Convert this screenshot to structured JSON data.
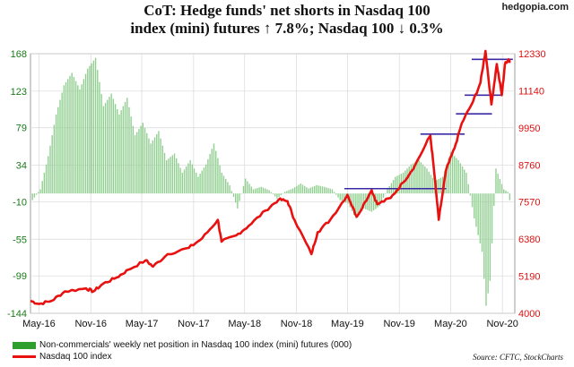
{
  "header": {
    "title_line1": "CoT: Hedge funds' net shorts in Nasdaq 100",
    "title_line2": "index (mini) futures ↑ 7.8%; Nasdaq 100 ↓ 0.3%",
    "watermark": "hedgopia.com"
  },
  "legend": {
    "bars_label": "Non-commercials' weekly net position in Nasdaq 100 index (mini) futures (000)",
    "line_label": "Nasdaq 100 index"
  },
  "source": "Source: CFTC, StockCharts",
  "colors": {
    "bars": "#8fce8f",
    "line": "#e8110f",
    "resistance": "#3b2aa6",
    "grid": "#d8d8d8"
  },
  "chart_data": {
    "type": "bar+line",
    "x_range": [
      "2016-04-01",
      "2020-12-15"
    ],
    "x_tick_labels": [
      {
        "label": "May-16",
        "date": "2016-05-01"
      },
      {
        "label": "Nov-16",
        "date": "2016-11-01"
      },
      {
        "label": "May-17",
        "date": "2017-05-01"
      },
      {
        "label": "Nov-17",
        "date": "2017-11-01"
      },
      {
        "label": "May-18",
        "date": "2018-05-01"
      },
      {
        "label": "Nov-18",
        "date": "2018-11-01"
      },
      {
        "label": "May-19",
        "date": "2019-05-01"
      },
      {
        "label": "Nov-19",
        "date": "2019-11-01"
      },
      {
        "label": "May-20",
        "date": "2020-05-01"
      },
      {
        "label": "Nov-20",
        "date": "2020-11-01"
      }
    ],
    "left_axis": {
      "range": [
        -144,
        168
      ],
      "ticks": [
        168,
        123,
        79,
        34,
        -10,
        -55,
        -99,
        -144
      ]
    },
    "right_axis": {
      "range": [
        4000,
        12330
      ],
      "ticks": [
        12330,
        11140,
        9950,
        8760,
        7570,
        6380,
        5190,
        4000
      ]
    },
    "grid": true,
    "legend_position": "bottom-left",
    "series": [
      {
        "name": "Non-commercials' weekly net position in Nasdaq 100 index (mini) futures (000)",
        "kind": "bar",
        "axis": "left",
        "points": [
          [
            "2016-04-08",
            -8
          ],
          [
            "2016-05-06",
            5
          ],
          [
            "2016-06-03",
            45
          ],
          [
            "2016-07-01",
            95
          ],
          [
            "2016-07-29",
            130
          ],
          [
            "2016-08-26",
            145
          ],
          [
            "2016-09-23",
            125
          ],
          [
            "2016-10-21",
            150
          ],
          [
            "2016-11-18",
            163
          ],
          [
            "2016-12-16",
            105
          ],
          [
            "2017-01-13",
            120
          ],
          [
            "2017-02-10",
            95
          ],
          [
            "2017-03-10",
            115
          ],
          [
            "2017-04-07",
            70
          ],
          [
            "2017-05-05",
            85
          ],
          [
            "2017-06-02",
            60
          ],
          [
            "2017-06-30",
            75
          ],
          [
            "2017-07-28",
            40
          ],
          [
            "2017-08-25",
            48
          ],
          [
            "2017-09-22",
            25
          ],
          [
            "2017-10-20",
            40
          ],
          [
            "2017-11-17",
            20
          ],
          [
            "2017-12-15",
            35
          ],
          [
            "2018-01-12",
            60
          ],
          [
            "2018-02-09",
            25
          ],
          [
            "2018-03-09",
            10
          ],
          [
            "2018-04-06",
            -18
          ],
          [
            "2018-05-04",
            18
          ],
          [
            "2018-06-01",
            5
          ],
          [
            "2018-06-29",
            8
          ],
          [
            "2018-07-27",
            4
          ],
          [
            "2018-08-24",
            -6
          ],
          [
            "2018-09-21",
            2
          ],
          [
            "2018-10-19",
            6
          ],
          [
            "2018-11-16",
            12
          ],
          [
            "2018-12-14",
            6
          ],
          [
            "2019-01-11",
            10
          ],
          [
            "2019-02-08",
            8
          ],
          [
            "2019-03-08",
            5
          ],
          [
            "2019-04-05",
            -8
          ],
          [
            "2019-05-03",
            -12
          ],
          [
            "2019-05-31",
            -30
          ],
          [
            "2019-06-28",
            -18
          ],
          [
            "2019-07-26",
            -22
          ],
          [
            "2019-08-23",
            -15
          ],
          [
            "2019-09-20",
            5
          ],
          [
            "2019-10-18",
            20
          ],
          [
            "2019-11-15",
            25
          ],
          [
            "2019-12-13",
            35
          ],
          [
            "2020-01-10",
            40
          ],
          [
            "2020-02-07",
            30
          ],
          [
            "2020-03-06",
            15
          ],
          [
            "2020-04-03",
            20
          ],
          [
            "2020-05-01",
            50
          ],
          [
            "2020-05-29",
            40
          ],
          [
            "2020-06-26",
            25
          ],
          [
            "2020-07-24",
            -30
          ],
          [
            "2020-08-21",
            -70
          ],
          [
            "2020-09-04",
            -135
          ],
          [
            "2020-09-18",
            -105
          ],
          [
            "2020-10-09",
            30
          ],
          [
            "2020-11-06",
            5
          ],
          [
            "2020-11-20",
            2
          ],
          [
            "2020-11-27",
            -8
          ]
        ]
      },
      {
        "name": "Nasdaq 100 index",
        "kind": "line",
        "axis": "right",
        "points": [
          [
            "2016-04-01",
            4400
          ],
          [
            "2016-05-01",
            4300
          ],
          [
            "2016-06-15",
            4400
          ],
          [
            "2016-08-01",
            4700
          ],
          [
            "2016-10-15",
            4800
          ],
          [
            "2016-11-10",
            4700
          ],
          [
            "2016-12-15",
            4950
          ],
          [
            "2017-02-01",
            5150
          ],
          [
            "2017-03-15",
            5400
          ],
          [
            "2017-05-15",
            5700
          ],
          [
            "2017-06-10",
            5500
          ],
          [
            "2017-08-01",
            5900
          ],
          [
            "2017-10-15",
            6100
          ],
          [
            "2017-12-01",
            6400
          ],
          [
            "2018-01-26",
            7000
          ],
          [
            "2018-02-08",
            6300
          ],
          [
            "2018-04-01",
            6500
          ],
          [
            "2018-05-15",
            6800
          ],
          [
            "2018-07-15",
            7300
          ],
          [
            "2018-08-30",
            7650
          ],
          [
            "2018-09-30",
            7600
          ],
          [
            "2018-10-25",
            7000
          ],
          [
            "2018-12-24",
            5900
          ],
          [
            "2019-01-15",
            6600
          ],
          [
            "2019-03-01",
            7000
          ],
          [
            "2019-05-01",
            7800
          ],
          [
            "2019-06-03",
            7100
          ],
          [
            "2019-07-26",
            7950
          ],
          [
            "2019-08-15",
            7500
          ],
          [
            "2019-10-01",
            7700
          ],
          [
            "2019-11-15",
            8200
          ],
          [
            "2019-12-27",
            8750
          ],
          [
            "2020-02-19",
            9700
          ],
          [
            "2020-03-01",
            8800
          ],
          [
            "2020-03-20",
            7000
          ],
          [
            "2020-04-15",
            8600
          ],
          [
            "2020-05-15",
            9300
          ],
          [
            "2020-06-10",
            10100
          ],
          [
            "2020-07-20",
            10800
          ],
          [
            "2020-08-15",
            11400
          ],
          [
            "2020-09-02",
            12420
          ],
          [
            "2020-09-23",
            10700
          ],
          [
            "2020-10-12",
            12000
          ],
          [
            "2020-10-30",
            11000
          ],
          [
            "2020-11-10",
            12000
          ],
          [
            "2020-11-23",
            12150
          ],
          [
            "2020-11-27",
            12100
          ]
        ]
      }
    ],
    "annotations": [
      {
        "kind": "horizontal_line",
        "axis": "right",
        "y": 8000,
        "x_from": "2019-04-20",
        "x_to": "2020-04-15"
      },
      {
        "kind": "horizontal_line",
        "axis": "right",
        "y": 9750,
        "x_from": "2020-01-15",
        "x_to": "2020-06-20"
      },
      {
        "kind": "horizontal_line",
        "axis": "right",
        "y": 10400,
        "x_from": "2020-05-20",
        "x_to": "2020-09-25"
      },
      {
        "kind": "horizontal_line",
        "axis": "right",
        "y": 11000,
        "x_from": "2020-06-20",
        "x_to": "2020-10-30"
      },
      {
        "kind": "horizontal_line",
        "axis": "right",
        "y": 12150,
        "x_from": "2020-07-15",
        "x_to": "2020-12-08"
      }
    ]
  }
}
